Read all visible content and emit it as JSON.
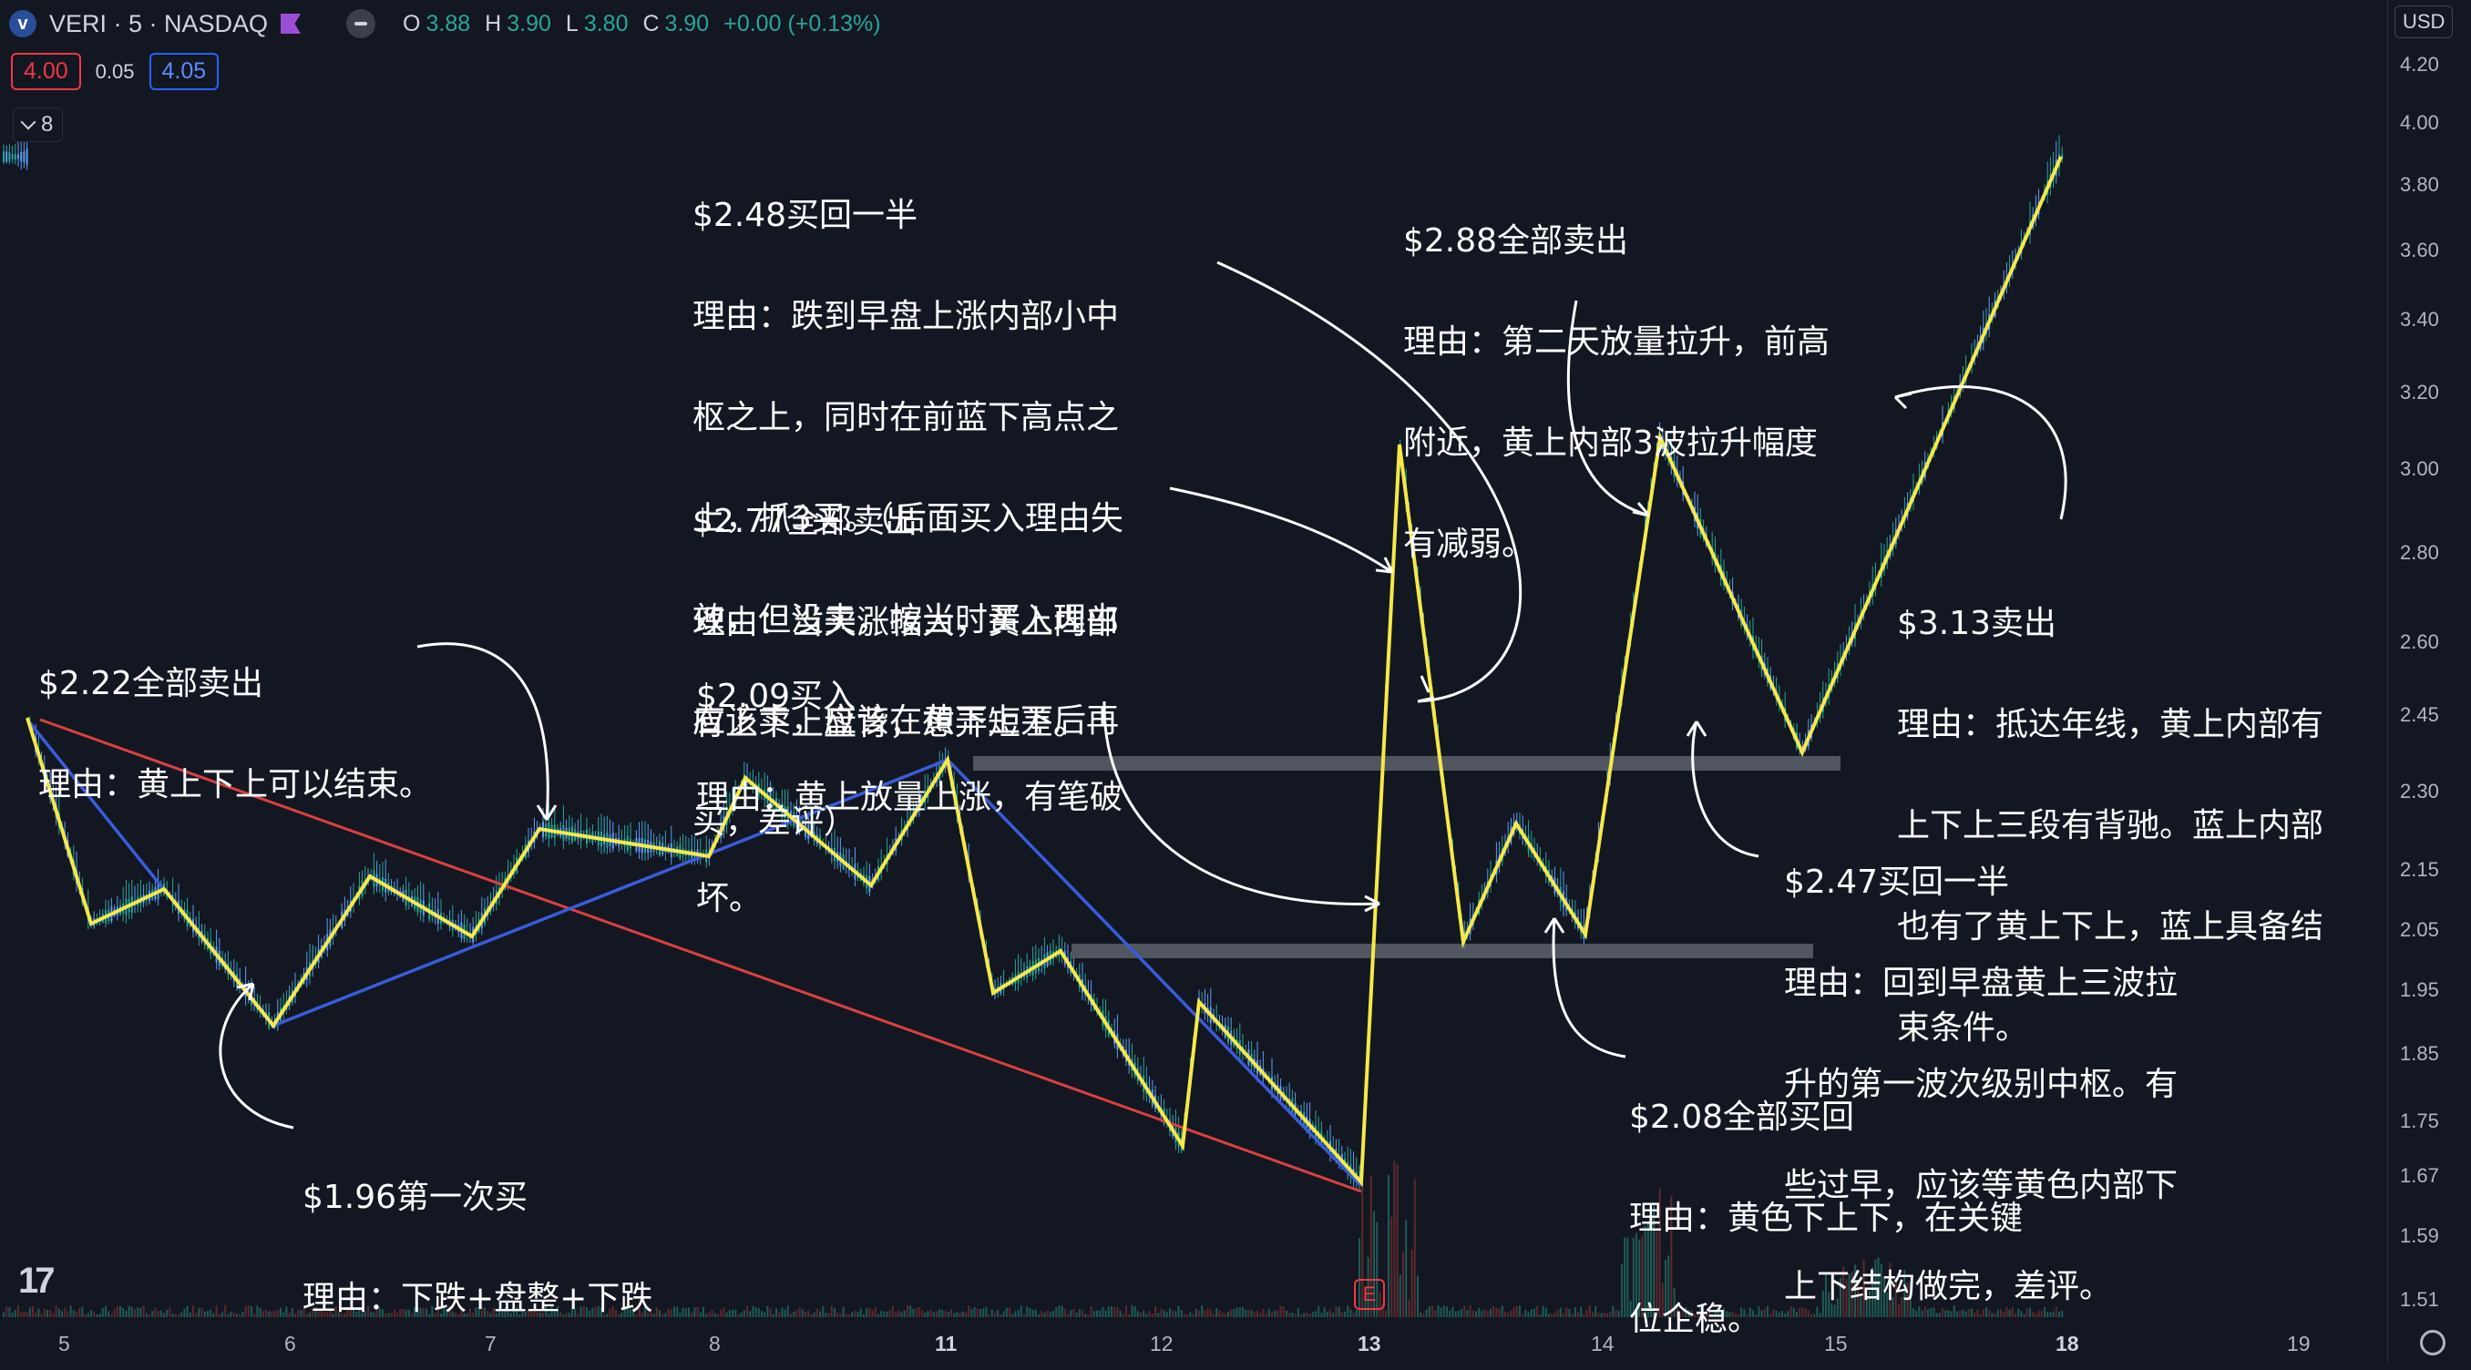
{
  "header": {
    "symbol": "VERI · 5 · NASDAQ",
    "logo_letter": "v",
    "ohlc": [
      {
        "k": "O",
        "v": "3.88"
      },
      {
        "k": "H",
        "v": "3.90"
      },
      {
        "k": "L",
        "v": "3.80"
      },
      {
        "k": "C",
        "v": "3.90"
      }
    ],
    "change": "+0.00 (+0.13%)"
  },
  "trade": {
    "sell": "4.00",
    "spread": "0.05",
    "buy": "4.05"
  },
  "indicators": {
    "count": "8"
  },
  "axis": {
    "currency": "USD",
    "y_labels": [
      "4.20",
      "4.00",
      "3.80",
      "3.60",
      "3.40",
      "3.20",
      "3.00",
      "2.80",
      "2.60",
      "2.45",
      "2.30",
      "2.15",
      "2.05",
      "1.95",
      "1.85",
      "1.75",
      "1.67",
      "1.59",
      "1.51"
    ],
    "x_labels": [
      {
        "label": "5",
        "bold": false
      },
      {
        "label": "6",
        "bold": false
      },
      {
        "label": "7",
        "bold": false
      },
      {
        "label": "8",
        "bold": false
      },
      {
        "label": "11",
        "bold": true
      },
      {
        "label": "12",
        "bold": false
      },
      {
        "label": "13",
        "bold": true
      },
      {
        "label": "14",
        "bold": false
      },
      {
        "label": "15",
        "bold": false
      },
      {
        "label": "18",
        "bold": true
      },
      {
        "label": "19",
        "bold": false
      }
    ]
  },
  "annotations": {
    "a1": [
      "$2.48买回一半",
      "理由：跌到早盘上涨内部小中",
      "枢之上，同时在前蓝下高点之",
      "上，抓3买。（后面买入理由失",
      "效，但没卖，按当时买入理由",
      "应该卖，应该在黄下上下后再",
      "买，差评）"
    ],
    "a2": [
      "$2.88全部卖出",
      "理由：第二天放量拉升，前高",
      "附近，黄上内部3波拉升幅度",
      "有减弱。"
    ],
    "a3": [
      "$2.77全部卖出",
      "理由：当天涨幅大，黄上内部",
      "有上下上盘背，想弄短差。"
    ],
    "a4": [
      "$2.22全部卖出",
      "理由：黄上下上可以结束。"
    ],
    "a5": [
      "$2.09买入",
      "理由：黄上放量上涨，有笔破",
      "坏。"
    ],
    "a6": [
      "$3.13卖出",
      "理由：抵达年线，黄上内部有",
      "上下上三段有背驰。蓝上内部",
      "也有了黄上下上，蓝上具备结",
      "束条件。"
    ],
    "a7": [
      "$2.47买回一半",
      "理由：回到早盘黄上三波拉",
      "升的第一波次级别中枢。有",
      "些过早，应该等黄色内部下",
      "上下结构做完，差评。"
    ],
    "a8": [
      "$2.08全部买回",
      "理由：黄色下上下，在关键",
      "位企稳。"
    ],
    "a9": [
      "$1.96第一次买",
      "理由：下跌+盘整+下跌"
    ]
  },
  "colors": {
    "background": "#131722",
    "candle_up": "#26a69a",
    "candle_down": "#5b9cf5",
    "yellow_line": "#f5e94a",
    "blue_line": "#3b5bdb",
    "red_line": "#d94040",
    "zone": "#5d606b"
  },
  "icons": {
    "logo": "tradingview-logo-icon",
    "earnings": "earnings-e-icon",
    "settings": "gear-icon"
  },
  "earnings_letter": "E"
}
